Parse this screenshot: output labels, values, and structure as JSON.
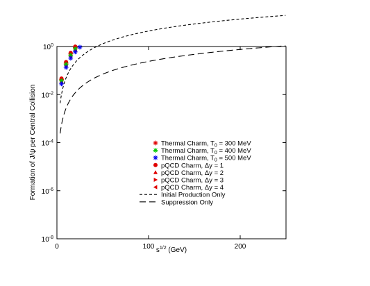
{
  "chart_data": {
    "type": "scatter",
    "xlabel": "s^{1/2} (GeV)",
    "ylabel": "Formation of J/ψ per Central Collision",
    "xlim": [
      0,
      250
    ],
    "ylim": [
      1e-08,
      1
    ],
    "yscale": "log",
    "grid": false,
    "legend_position": "center-right",
    "x_ticks": [
      0,
      100,
      200
    ],
    "x_tick_labels": [
      "0",
      "100",
      "200"
    ],
    "y_ticks": [
      1e-08,
      1e-06,
      0.0001,
      0.01,
      1
    ],
    "y_tick_labels": [
      {
        "base": "10",
        "exp": "-8"
      },
      {
        "base": "10",
        "exp": "-6"
      },
      {
        "base": "10",
        "exp": "-4"
      },
      {
        "base": "10",
        "exp": "-2"
      },
      {
        "base": "10",
        "exp": "0"
      }
    ],
    "x": [
      5,
      10,
      15,
      20,
      25,
      30,
      35,
      40,
      45,
      50,
      55,
      60,
      65,
      70,
      75,
      80,
      85,
      90,
      95,
      100,
      105,
      110,
      115,
      120,
      125,
      130,
      135,
      140,
      145,
      150,
      155,
      160,
      165,
      170,
      175,
      180,
      185,
      190,
      195,
      200,
      205,
      210,
      215,
      220,
      225,
      230,
      235,
      240,
      245,
      250
    ],
    "series": [
      {
        "name": "Thermal Charm, T_0 = 300 MeV",
        "marker": "asterisk",
        "color": "#e00000",
        "k": 0.0009
      },
      {
        "name": "Thermal Charm, T_0 = 400 MeV",
        "marker": "asterisk",
        "color": "#00c800",
        "k": 0.0008
      },
      {
        "name": "Thermal Charm, T_0 = 500 MeV",
        "marker": "asterisk",
        "color": "#0000ee",
        "k": 0.0006
      },
      {
        "name": "pQCD Charm, Δy = 1",
        "marker": "circle",
        "color": "#e00000",
        "k": 0.001
      },
      {
        "name": "pQCD Charm, Δy = 2",
        "marker": "triangle-up",
        "color": "#e00000",
        "k": 0.0009
      },
      {
        "name": "pQCD Charm, Δy = 3",
        "marker": "triangle-right",
        "color": "#e00000",
        "k": 0.0008
      },
      {
        "name": "pQCD Charm, Δy = 4",
        "marker": "triangle-left",
        "color": "#e00000",
        "k": 0.0007
      },
      {
        "name": "Initial Production Only",
        "marker": "line-dashed-short",
        "color": "#000000",
        "k": 0.00022
      },
      {
        "name": "Suppression Only",
        "marker": "line-dashed-long",
        "color": "#000000",
        "k": 1.2e-05
      }
    ],
    "legend": [
      {
        "prefix": "Thermal Charm, T",
        "sub": "0",
        "suffix": " = 300 MeV"
      },
      {
        "prefix": "Thermal Charm, T",
        "sub": "0",
        "suffix": " = 400 MeV"
      },
      {
        "prefix": "Thermal Charm, T",
        "sub": "0",
        "suffix": " = 500 MeV"
      },
      {
        "prefix": "pQCD Charm, ",
        "sub": "",
        "suffix": "Δy = 1"
      },
      {
        "prefix": "pQCD Charm, ",
        "sub": "",
        "suffix": "Δy = 2"
      },
      {
        "prefix": "pQCD Charm, ",
        "sub": "",
        "suffix": "Δy = 3"
      },
      {
        "prefix": "pQCD Charm, ",
        "sub": "",
        "suffix": "Δy = 4"
      },
      {
        "prefix": "Initial Production Only",
        "sub": "",
        "suffix": ""
      },
      {
        "prefix": "Suppression Only",
        "sub": "",
        "suffix": ""
      }
    ]
  },
  "xlabel_parts": {
    "base": "s",
    "exp": "1/2",
    "unit": " (GeV)"
  }
}
